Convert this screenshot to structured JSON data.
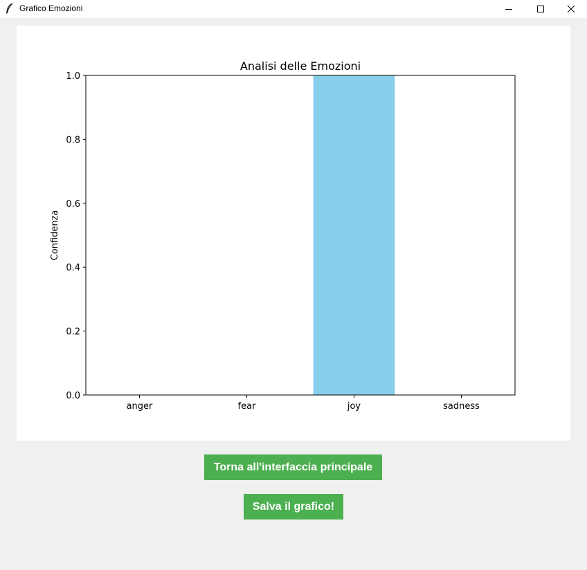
{
  "window": {
    "title": "Grafico Emozioni"
  },
  "buttons": {
    "back_label": "Torna all'interfaccia principale",
    "save_label": "Salva il grafico!"
  },
  "colors": {
    "button_bg": "#4caf50",
    "bar": "#87ceeb"
  },
  "chart_data": {
    "type": "bar",
    "title": "Analisi delle Emozioni",
    "xlabel": "",
    "ylabel": "Confidenza",
    "categories": [
      "anger",
      "fear",
      "joy",
      "sadness"
    ],
    "values": [
      0.0,
      0.0,
      1.0,
      0.0
    ],
    "ylim": [
      0.0,
      1.0
    ],
    "yticks": [
      "0.0",
      "0.2",
      "0.4",
      "0.6",
      "0.8",
      "1.0"
    ],
    "grid": false,
    "bar_color": "#87ceeb"
  }
}
